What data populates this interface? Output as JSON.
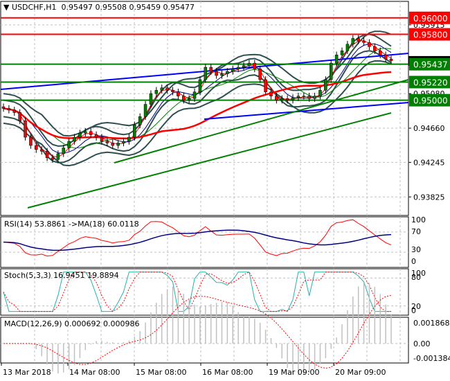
{
  "header": {
    "symbol": "USDCHF,H1",
    "open": "0.95497",
    "high": "0.95508",
    "low": "0.95459",
    "close": "0.95477"
  },
  "panels": {
    "rsi": {
      "label": "RSI(14) 53.8861   ->MA(18) 60.0118",
      "levels": [
        "100",
        "70",
        "30",
        "0"
      ]
    },
    "stoch": {
      "label": "Stoch(5,3,3) 16.9451 19.8894",
      "levels": [
        "100",
        "80",
        "20",
        "0"
      ]
    },
    "macd": {
      "label": "MACD(12,26,9) 0.000692 0.000986",
      "levels": [
        "0.001868",
        "0.00",
        "-0.001384"
      ]
    }
  },
  "price_axis": {
    "ticks": [
      "0.95915",
      "0.95080",
      "0.94660",
      "0.94245",
      "0.93825"
    ],
    "current": "0.95477",
    "levels": [
      {
        "value": "0.96000",
        "color": "#ff0000"
      },
      {
        "value": "0.95800",
        "color": "#ff0000"
      },
      {
        "value": "0.95437",
        "color": "#008000"
      },
      {
        "value": "0.95220",
        "color": "#008000"
      },
      {
        "value": "0.95000",
        "color": "#008000"
      }
    ]
  },
  "time_axis": {
    "labels": [
      "13 Mar 2018",
      "14 Mar 08:00",
      "15 Mar 08:00",
      "16 Mar 08:00",
      "19 Mar 09:00",
      "20 Mar 09:00"
    ]
  },
  "colors": {
    "bull": "#008000",
    "bear": "#ff0000",
    "resistance": "#ff0000",
    "support": "#008000",
    "channel": "#0000ff",
    "bands": "#2f4f4f",
    "ma_fast": "#ff0000",
    "ma_mid": "#000080",
    "ma_slow": "#008000",
    "rsi": "#ff0000",
    "rsi_ma": "#000080",
    "stoch_k": "#20b2aa",
    "stoch_d": "#ff0000",
    "macd_hist": "#c0c0c0",
    "macd_signal": "#ff0000"
  },
  "chart_data": [
    {
      "type": "candlestick",
      "title": "USDCHF,H1",
      "ylim": [
        0.936,
        0.962
      ],
      "y_ticks": [
        0.95915,
        0.9508,
        0.9466,
        0.94245,
        0.93825
      ],
      "x_labels": [
        "13 Mar 2018",
        "14 Mar 08:00",
        "15 Mar 08:00",
        "16 Mar 08:00",
        "19 Mar 09:00",
        "20 Mar 09:00"
      ],
      "horizontal_levels": [
        0.96,
        0.958,
        0.95437,
        0.9522,
        0.95
      ],
      "last": {
        "open": 0.95497,
        "high": 0.95508,
        "low": 0.95459,
        "close": 0.95477
      },
      "close_series": [
        0.949,
        0.9488,
        0.9485,
        0.9475,
        0.9455,
        0.9445,
        0.944,
        0.9438,
        0.943,
        0.9428,
        0.9435,
        0.9442,
        0.945,
        0.9455,
        0.946,
        0.9462,
        0.9458,
        0.9455,
        0.945,
        0.9448,
        0.9445,
        0.9448,
        0.945,
        0.9455,
        0.947,
        0.948,
        0.9495,
        0.9508,
        0.9512,
        0.9515,
        0.9512,
        0.951,
        0.9505,
        0.95,
        0.9502,
        0.951,
        0.9525,
        0.954,
        0.9535,
        0.953,
        0.9532,
        0.9535,
        0.9538,
        0.954,
        0.9542,
        0.9545,
        0.9538,
        0.9525,
        0.951,
        0.9505,
        0.95,
        0.9502,
        0.95,
        0.9503,
        0.9505,
        0.9505,
        0.9502,
        0.9505,
        0.9512,
        0.9525,
        0.9545,
        0.9555,
        0.956,
        0.9568,
        0.9575,
        0.9572,
        0.957,
        0.9565,
        0.956,
        0.9555,
        0.955,
        0.9548
      ]
    },
    {
      "type": "line",
      "title": "RSI(14)",
      "values_label": {
        "rsi": 53.8861,
        "ma18": 60.0118
      },
      "ylim": [
        0,
        100
      ],
      "levels": [
        70,
        30
      ]
    },
    {
      "type": "line",
      "title": "Stoch(5,3,3)",
      "values_label": {
        "k": 16.9451,
        "d": 19.8894
      },
      "ylim": [
        0,
        100
      ],
      "levels": [
        80,
        20
      ]
    },
    {
      "type": "bar",
      "title": "MACD(12,26,9)",
      "values_label": {
        "macd": 0.000692,
        "signal": 0.000986
      },
      "ylim": [
        -0.001384,
        0.001868
      ]
    }
  ]
}
